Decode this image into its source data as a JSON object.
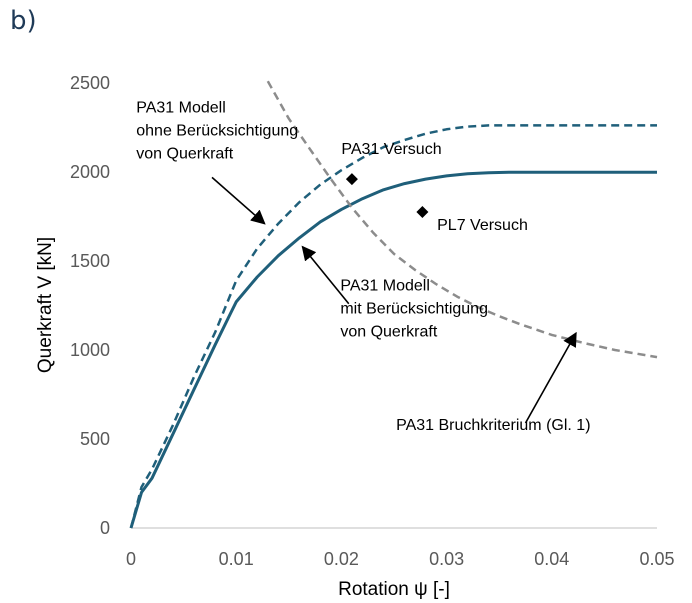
{
  "panel_label": "b)",
  "chart_data": {
    "type": "line",
    "xlabel": "Rotation ψ [-]",
    "ylabel": "Querkraft V [kN]",
    "xlim": [
      0,
      0.05
    ],
    "ylim": [
      0,
      2500
    ],
    "x_ticks": [
      "0",
      "0.01",
      "0.02",
      "0.03",
      "0.04",
      "0.05"
    ],
    "y_ticks": [
      "0",
      "500",
      "1000",
      "1500",
      "2000",
      "2500"
    ],
    "grid": false,
    "series": [
      {
        "id": "dashed-model",
        "color": "#1f5f7a",
        "style": "dashed",
        "points": [
          [
            0,
            0
          ],
          [
            0.001,
            230
          ],
          [
            0.002,
            330
          ],
          [
            0.004,
            580
          ],
          [
            0.006,
            850
          ],
          [
            0.008,
            1100
          ],
          [
            0.01,
            1390
          ],
          [
            0.012,
            1570
          ],
          [
            0.014,
            1710
          ],
          [
            0.016,
            1830
          ],
          [
            0.018,
            1930
          ],
          [
            0.02,
            2010
          ],
          [
            0.022,
            2080
          ],
          [
            0.024,
            2140
          ],
          [
            0.026,
            2180
          ],
          [
            0.028,
            2215
          ],
          [
            0.03,
            2240
          ],
          [
            0.032,
            2255
          ],
          [
            0.034,
            2262
          ],
          [
            0.036,
            2262
          ],
          [
            0.05,
            2262
          ]
        ]
      },
      {
        "id": "solid-model",
        "color": "#1f5f7a",
        "style": "solid",
        "points": [
          [
            0,
            0
          ],
          [
            0.001,
            200
          ],
          [
            0.002,
            280
          ],
          [
            0.004,
            530
          ],
          [
            0.006,
            780
          ],
          [
            0.008,
            1030
          ],
          [
            0.0095,
            1210
          ],
          [
            0.01,
            1270
          ],
          [
            0.012,
            1410
          ],
          [
            0.014,
            1530
          ],
          [
            0.016,
            1630
          ],
          [
            0.018,
            1720
          ],
          [
            0.02,
            1790
          ],
          [
            0.022,
            1850
          ],
          [
            0.024,
            1900
          ],
          [
            0.026,
            1935
          ],
          [
            0.028,
            1960
          ],
          [
            0.03,
            1978
          ],
          [
            0.032,
            1990
          ],
          [
            0.034,
            1996
          ],
          [
            0.036,
            1999
          ],
          [
            0.05,
            1999
          ]
        ]
      },
      {
        "id": "failure-criterion",
        "color": "#8c8c8c",
        "style": "dashed",
        "points": [
          [
            0.013,
            2510
          ],
          [
            0.015,
            2300
          ],
          [
            0.017,
            2130
          ],
          [
            0.019,
            1960
          ],
          [
            0.021,
            1800
          ],
          [
            0.023,
            1660
          ],
          [
            0.025,
            1540
          ],
          [
            0.027,
            1450
          ],
          [
            0.029,
            1370
          ],
          [
            0.031,
            1300
          ],
          [
            0.033,
            1240
          ],
          [
            0.035,
            1190
          ],
          [
            0.037,
            1145
          ],
          [
            0.04,
            1085
          ],
          [
            0.043,
            1040
          ],
          [
            0.046,
            1000
          ],
          [
            0.05,
            960
          ]
        ]
      }
    ],
    "markers": [
      {
        "id": "pa31-test-point",
        "x": 0.021,
        "y": 1960,
        "symbol": "diamond",
        "color": "#000000"
      },
      {
        "id": "pl7-test-point",
        "x": 0.0277,
        "y": 1775,
        "symbol": "diamond",
        "color": "#000000"
      }
    ],
    "annotations": [
      {
        "id": "label-dashed-model",
        "lines": [
          "PA31 Modell",
          "ohne Berücksichtigung",
          "von Querkraft"
        ],
        "x": 0.0005,
        "y": 2335,
        "arrow_from": [
          0.0077,
          1970
        ],
        "arrow_to": [
          0.0127,
          1710
        ]
      },
      {
        "id": "label-solid-model",
        "lines": [
          "PA31 Modell",
          "mit Berücksichtigung",
          "von Querkraft"
        ],
        "x": 0.0199,
        "y": 1335,
        "arrow_from": [
          0.0207,
          1260
        ],
        "arrow_to": [
          0.0163,
          1580
        ]
      },
      {
        "id": "label-pa31-test",
        "lines": [
          "PA31 Versuch"
        ],
        "x": 0.02,
        "y": 2100,
        "arrow_from": null,
        "arrow_to": null
      },
      {
        "id": "label-pl7-test",
        "lines": [
          "PL7 Versuch"
        ],
        "x": 0.0291,
        "y": 1675,
        "arrow_from": null,
        "arrow_to": null
      },
      {
        "id": "label-failure-criterion",
        "lines": [
          "PA31 Bruchkriterium (Gl. 1)"
        ],
        "x": 0.0252,
        "y": 550,
        "arrow_from": [
          0.0375,
          590
        ],
        "arrow_to": [
          0.0423,
          1095
        ]
      }
    ]
  }
}
